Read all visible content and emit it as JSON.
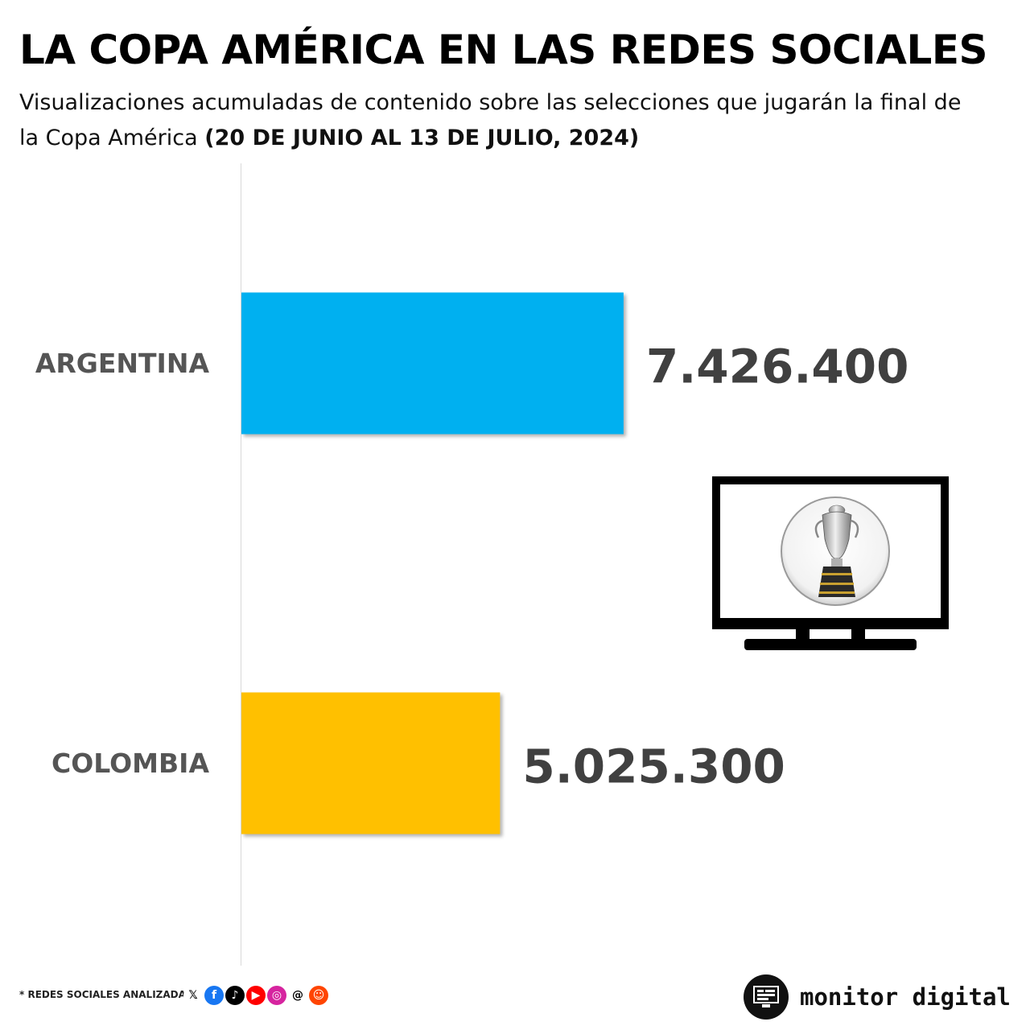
{
  "header": {
    "title": "LA COPA AMÉRICA EN LAS REDES SOCIALES",
    "subtitle": "Visualizaciones acumuladas de contenido sobre las selecciones que jugarán la final de la Copa América",
    "subtitle_bold": "(20 DE JUNIO AL 13 DE JULIO, 2024)"
  },
  "chart_data": {
    "type": "bar",
    "orientation": "horizontal",
    "categories": [
      "ARGENTINA",
      "COLOMBIA"
    ],
    "values": [
      7426400,
      5025300
    ],
    "value_labels": [
      "7.426.400",
      "5.025.300"
    ],
    "colors": [
      "#00B0F0",
      "#FFC000"
    ],
    "title": "",
    "xlabel": "",
    "ylabel": "",
    "xlim": [
      0,
      14700000
    ],
    "grid": false,
    "legend": "none"
  },
  "footer": {
    "note": "* REDES SOCIALES ANALIZADAS",
    "networks": [
      {
        "icon": "x-icon",
        "glyph": "𝕏",
        "bg": "#ffffff",
        "fg": "#000000"
      },
      {
        "icon": "facebook-icon",
        "glyph": "f",
        "bg": "#1877F2",
        "fg": "#ffffff"
      },
      {
        "icon": "tiktok-icon",
        "glyph": "♪",
        "bg": "#000000",
        "fg": "#ffffff"
      },
      {
        "icon": "youtube-icon",
        "glyph": "▶",
        "bg": "#FF0000",
        "fg": "#ffffff"
      },
      {
        "icon": "instagram-icon",
        "glyph": "◎",
        "bg": "#D6249F",
        "fg": "#ffffff"
      },
      {
        "icon": "threads-icon",
        "glyph": "@",
        "bg": "#ffffff",
        "fg": "#000000"
      },
      {
        "icon": "reddit-icon",
        "glyph": "☺",
        "bg": "#FF4500",
        "fg": "#ffffff"
      }
    ],
    "brand": "monitor digital"
  }
}
